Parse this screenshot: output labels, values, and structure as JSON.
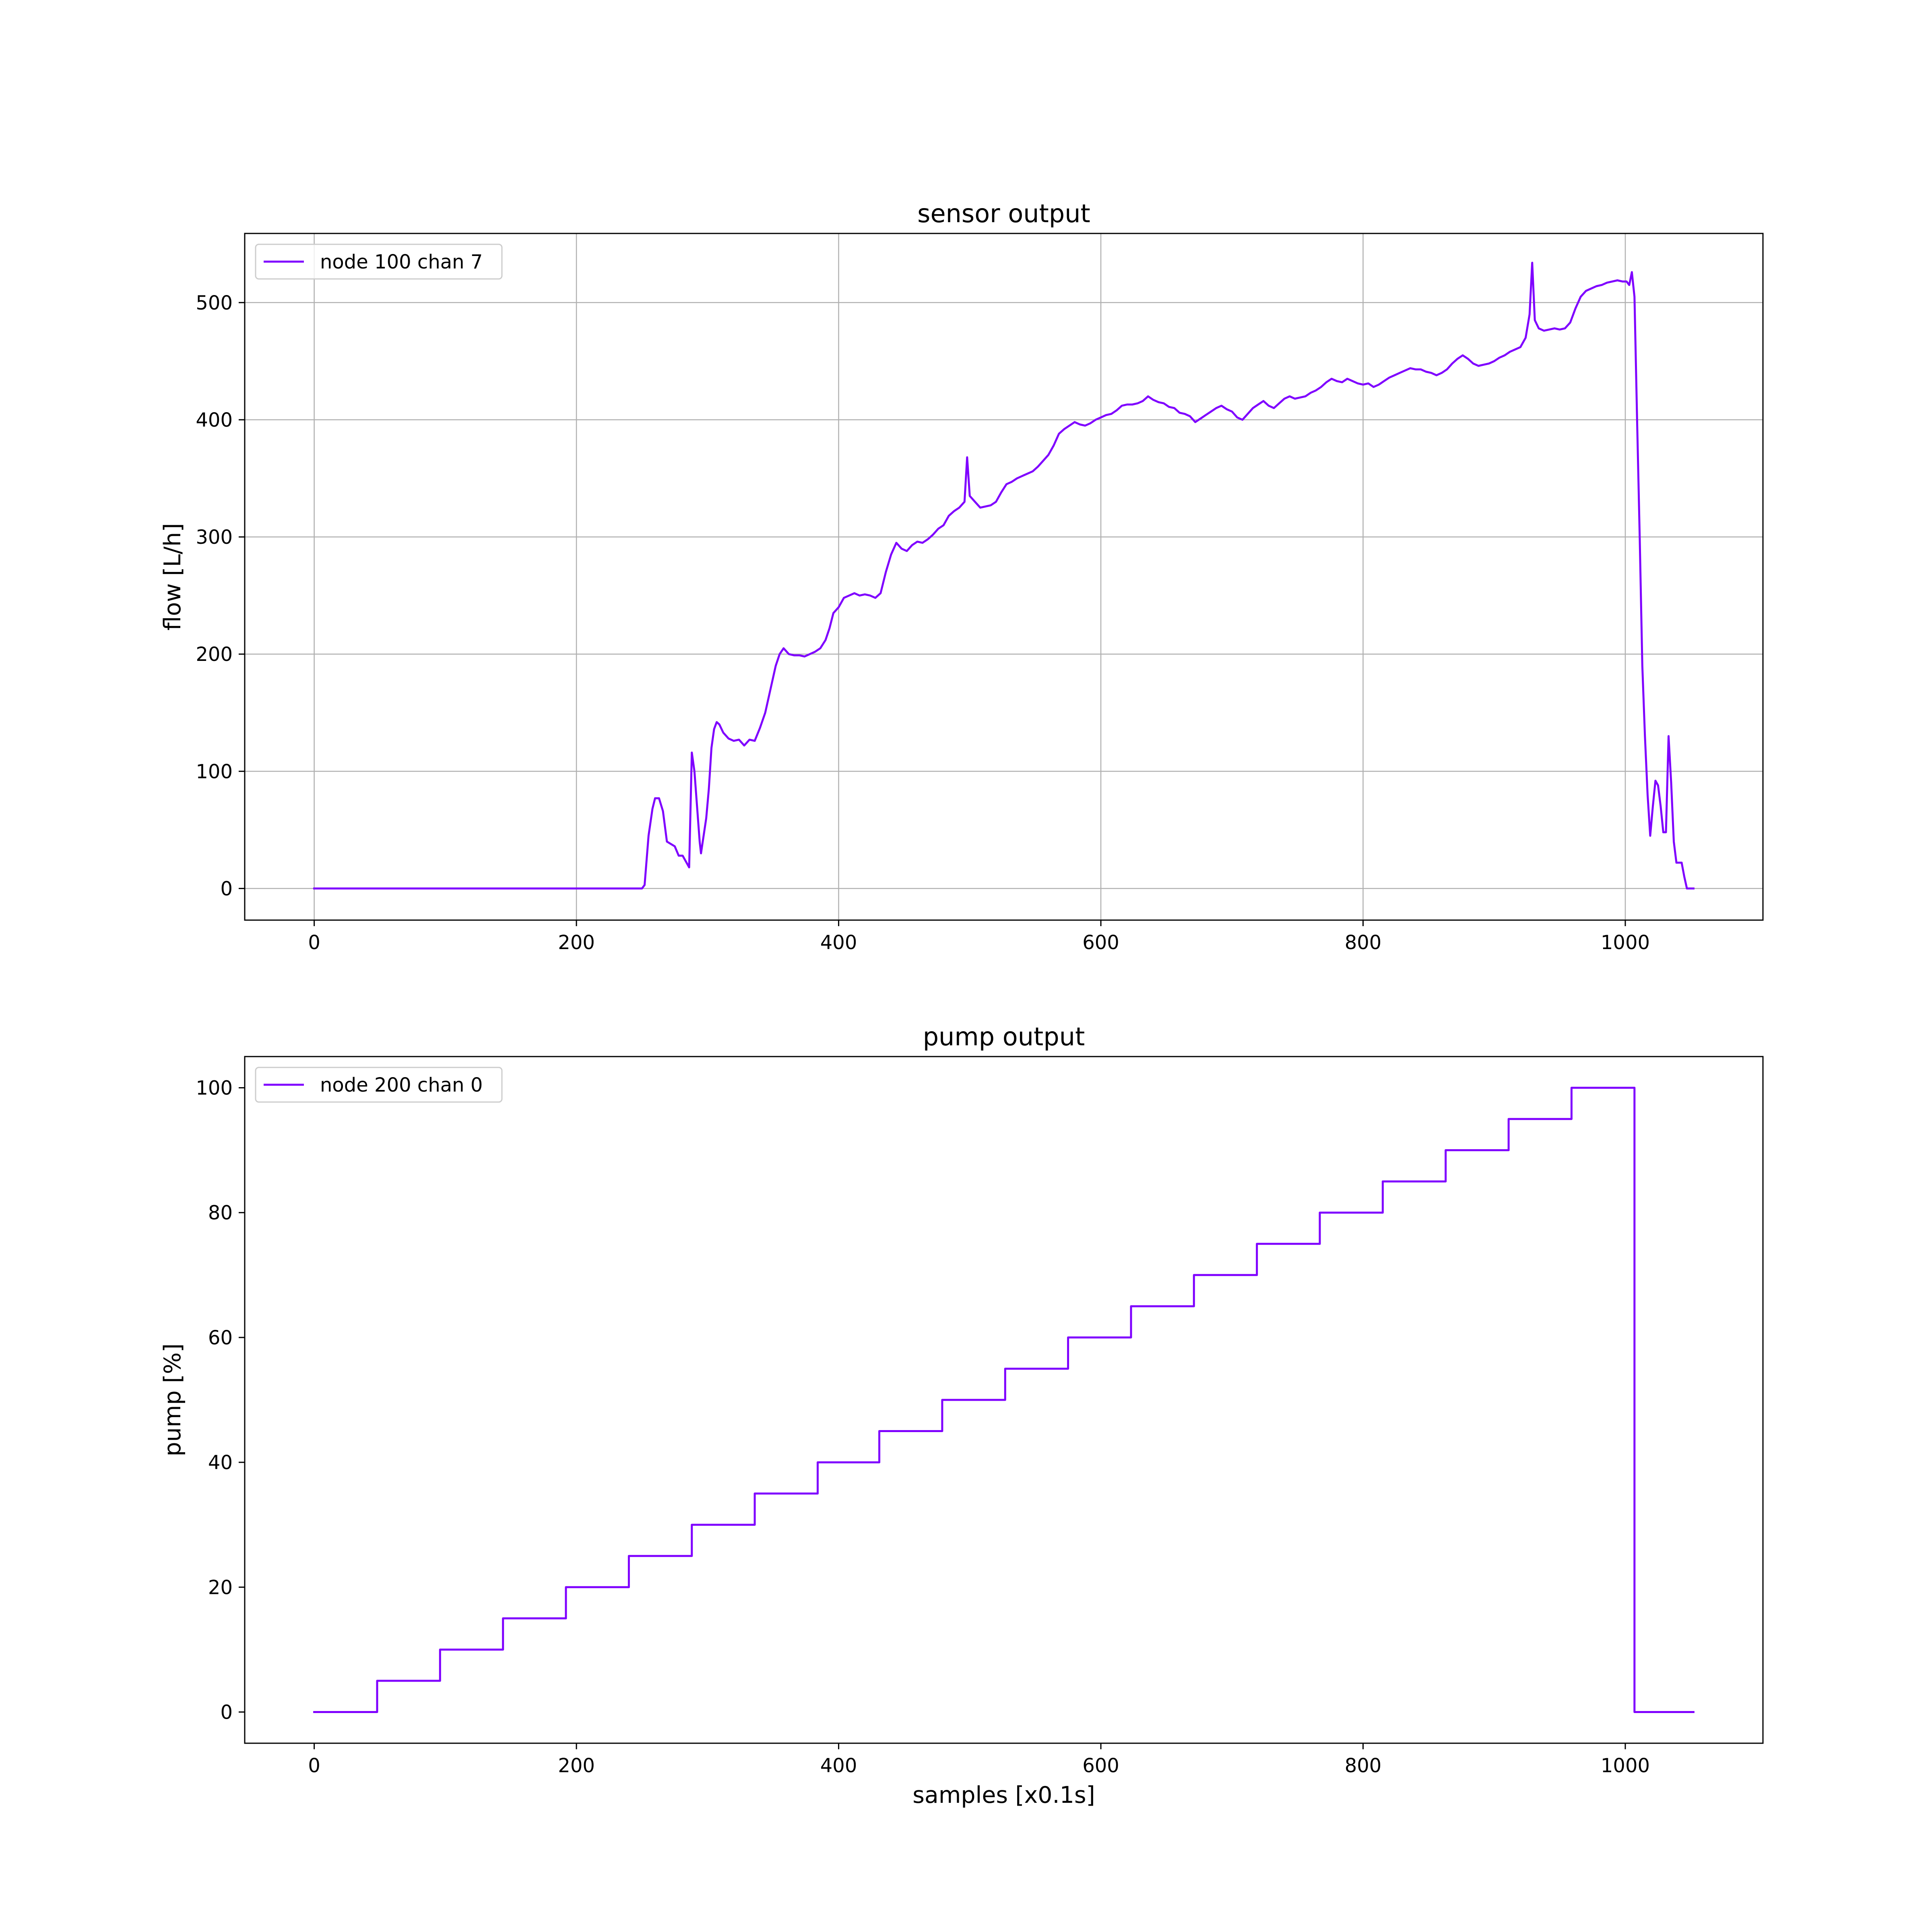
{
  "colors": {
    "series": "#7f00ff",
    "grid": "#b0b0b0",
    "axes": "#000000",
    "legend_border": "#cccccc"
  },
  "chart_data": [
    {
      "type": "line",
      "title": "sensor output",
      "xlabel": "",
      "ylabel": "flow [L/h]",
      "xlim": [
        -53,
        1105
      ],
      "ylim": [
        -27,
        559
      ],
      "xticks": [
        0,
        200,
        400,
        600,
        800,
        1000
      ],
      "xtick_labels": [
        "0",
        "200",
        "400",
        "600",
        "800",
        "1000"
      ],
      "yticks": [
        0,
        100,
        200,
        300,
        400,
        500
      ],
      "ytick_labels": [
        "0",
        "100",
        "200",
        "300",
        "400",
        "500"
      ],
      "grid": true,
      "legend": "top-left",
      "series": [
        {
          "name": "node 100 chan 7",
          "points": [
            [
              0,
              0
            ],
            [
              250,
              0
            ],
            [
              252,
              3
            ],
            [
              255,
              45
            ],
            [
              258,
              68
            ],
            [
              260,
              77
            ],
            [
              263,
              77
            ],
            [
              266,
              66
            ],
            [
              269,
              40
            ],
            [
              272,
              38
            ],
            [
              275,
              36
            ],
            [
              278,
              28
            ],
            [
              281,
              28
            ],
            [
              284,
              22
            ],
            [
              286,
              18
            ],
            [
              288,
              116
            ],
            [
              290,
              100
            ],
            [
              292,
              70
            ],
            [
              294,
              40
            ],
            [
              295,
              30
            ],
            [
              297,
              45
            ],
            [
              299,
              60
            ],
            [
              301,
              85
            ],
            [
              303,
              120
            ],
            [
              305,
              136
            ],
            [
              307,
              142
            ],
            [
              309,
              140
            ],
            [
              312,
              133
            ],
            [
              316,
              128
            ],
            [
              320,
              126
            ],
            [
              324,
              127
            ],
            [
              328,
              122
            ],
            [
              332,
              127
            ],
            [
              336,
              126
            ],
            [
              340,
              137
            ],
            [
              344,
              150
            ],
            [
              348,
              170
            ],
            [
              352,
              190
            ],
            [
              355,
              200
            ],
            [
              358,
              205
            ],
            [
              362,
              200
            ],
            [
              366,
              199
            ],
            [
              370,
              199
            ],
            [
              374,
              198
            ],
            [
              378,
              200
            ],
            [
              382,
              202
            ],
            [
              386,
              205
            ],
            [
              390,
              212
            ],
            [
              393,
              222
            ],
            [
              396,
              235
            ],
            [
              400,
              240
            ],
            [
              404,
              248
            ],
            [
              408,
              250
            ],
            [
              412,
              252
            ],
            [
              416,
              250
            ],
            [
              420,
              251
            ],
            [
              424,
              250
            ],
            [
              428,
              248
            ],
            [
              432,
              252
            ],
            [
              436,
              270
            ],
            [
              440,
              285
            ],
            [
              444,
              295
            ],
            [
              448,
              290
            ],
            [
              452,
              288
            ],
            [
              456,
              293
            ],
            [
              460,
              296
            ],
            [
              464,
              295
            ],
            [
              468,
              298
            ],
            [
              472,
              302
            ],
            [
              476,
              307
            ],
            [
              480,
              310
            ],
            [
              484,
              318
            ],
            [
              488,
              322
            ],
            [
              492,
              325
            ],
            [
              496,
              330
            ],
            [
              498,
              368
            ],
            [
              500,
              335
            ],
            [
              504,
              330
            ],
            [
              508,
              325
            ],
            [
              512,
              326
            ],
            [
              516,
              327
            ],
            [
              520,
              330
            ],
            [
              524,
              338
            ],
            [
              528,
              345
            ],
            [
              532,
              347
            ],
            [
              536,
              350
            ],
            [
              540,
              352
            ],
            [
              544,
              354
            ],
            [
              548,
              356
            ],
            [
              552,
              360
            ],
            [
              556,
              365
            ],
            [
              560,
              370
            ],
            [
              564,
              378
            ],
            [
              568,
              388
            ],
            [
              572,
              392
            ],
            [
              576,
              395
            ],
            [
              580,
              398
            ],
            [
              584,
              396
            ],
            [
              588,
              395
            ],
            [
              592,
              397
            ],
            [
              596,
              400
            ],
            [
              600,
              402
            ],
            [
              604,
              404
            ],
            [
              608,
              405
            ],
            [
              612,
              408
            ],
            [
              616,
              412
            ],
            [
              620,
              413
            ],
            [
              624,
              413
            ],
            [
              628,
              414
            ],
            [
              632,
              416
            ],
            [
              636,
              420
            ],
            [
              640,
              417
            ],
            [
              644,
              415
            ],
            [
              648,
              414
            ],
            [
              652,
              411
            ],
            [
              656,
              410
            ],
            [
              660,
              406
            ],
            [
              664,
              405
            ],
            [
              668,
              403
            ],
            [
              672,
              398
            ],
            [
              676,
              401
            ],
            [
              680,
              404
            ],
            [
              684,
              407
            ],
            [
              688,
              410
            ],
            [
              692,
              412
            ],
            [
              696,
              409
            ],
            [
              700,
              407
            ],
            [
              704,
              402
            ],
            [
              708,
              400
            ],
            [
              712,
              405
            ],
            [
              716,
              410
            ],
            [
              720,
              413
            ],
            [
              724,
              416
            ],
            [
              728,
              412
            ],
            [
              732,
              410
            ],
            [
              736,
              414
            ],
            [
              740,
              418
            ],
            [
              744,
              420
            ],
            [
              748,
              418
            ],
            [
              752,
              419
            ],
            [
              756,
              420
            ],
            [
              760,
              423
            ],
            [
              764,
              425
            ],
            [
              768,
              428
            ],
            [
              772,
              432
            ],
            [
              776,
              435
            ],
            [
              780,
              433
            ],
            [
              784,
              432
            ],
            [
              788,
              435
            ],
            [
              792,
              433
            ],
            [
              796,
              431
            ],
            [
              800,
              430
            ],
            [
              804,
              431
            ],
            [
              808,
              428
            ],
            [
              812,
              430
            ],
            [
              816,
              433
            ],
            [
              820,
              436
            ],
            [
              824,
              438
            ],
            [
              828,
              440
            ],
            [
              832,
              442
            ],
            [
              836,
              444
            ],
            [
              840,
              443
            ],
            [
              844,
              443
            ],
            [
              848,
              441
            ],
            [
              852,
              440
            ],
            [
              856,
              438
            ],
            [
              860,
              440
            ],
            [
              864,
              443
            ],
            [
              868,
              448
            ],
            [
              872,
              452
            ],
            [
              876,
              455
            ],
            [
              880,
              452
            ],
            [
              884,
              448
            ],
            [
              888,
              446
            ],
            [
              892,
              447
            ],
            [
              896,
              448
            ],
            [
              900,
              450
            ],
            [
              904,
              453
            ],
            [
              908,
              455
            ],
            [
              912,
              458
            ],
            [
              916,
              460
            ],
            [
              920,
              462
            ],
            [
              924,
              470
            ],
            [
              927,
              490
            ],
            [
              929,
              534
            ],
            [
              931,
              485
            ],
            [
              934,
              478
            ],
            [
              938,
              476
            ],
            [
              942,
              477
            ],
            [
              946,
              478
            ],
            [
              950,
              477
            ],
            [
              954,
              478
            ],
            [
              958,
              483
            ],
            [
              962,
              495
            ],
            [
              966,
              505
            ],
            [
              970,
              510
            ],
            [
              974,
              512
            ],
            [
              978,
              514
            ],
            [
              982,
              515
            ],
            [
              986,
              517
            ],
            [
              990,
              518
            ],
            [
              994,
              519
            ],
            [
              998,
              518
            ],
            [
              1001,
              518
            ],
            [
              1003,
              515
            ],
            [
              1005,
              526
            ],
            [
              1007,
              505
            ],
            [
              1009,
              400
            ],
            [
              1011,
              300
            ],
            [
              1013,
              190
            ],
            [
              1015,
              130
            ],
            [
              1017,
              80
            ],
            [
              1019,
              45
            ],
            [
              1021,
              70
            ],
            [
              1023,
              92
            ],
            [
              1025,
              88
            ],
            [
              1027,
              70
            ],
            [
              1029,
              48
            ],
            [
              1031,
              48
            ],
            [
              1033,
              130
            ],
            [
              1035,
              90
            ],
            [
              1037,
              40
            ],
            [
              1039,
              22
            ],
            [
              1041,
              22
            ],
            [
              1043,
              22
            ],
            [
              1045,
              10
            ],
            [
              1047,
              0
            ],
            [
              1052,
              0
            ]
          ]
        }
      ]
    },
    {
      "type": "line",
      "title": "pump output",
      "xlabel": "samples [x0.1s]",
      "ylabel": "pump [%]",
      "xlim": [
        -53,
        1105
      ],
      "ylim": [
        -5,
        105
      ],
      "xticks": [
        0,
        200,
        400,
        600,
        800,
        1000
      ],
      "xtick_labels": [
        "0",
        "200",
        "400",
        "600",
        "800",
        "1000"
      ],
      "yticks": [
        0,
        20,
        40,
        60,
        80,
        100
      ],
      "ytick_labels": [
        "0",
        "20",
        "40",
        "60",
        "80",
        "100"
      ],
      "grid": false,
      "legend": "top-left",
      "series": [
        {
          "name": "node 200 chan 0",
          "step": true,
          "points": [
            [
              0,
              0
            ],
            [
              48,
              5
            ],
            [
              96,
              10
            ],
            [
              144,
              15
            ],
            [
              192,
              20
            ],
            [
              240,
              25
            ],
            [
              288,
              30
            ],
            [
              336,
              35
            ],
            [
              384,
              40
            ],
            [
              431,
              45
            ],
            [
              479,
              50
            ],
            [
              527,
              55
            ],
            [
              575,
              60
            ],
            [
              623,
              65
            ],
            [
              671,
              70
            ],
            [
              719,
              75
            ],
            [
              767,
              80
            ],
            [
              815,
              85
            ],
            [
              863,
              90
            ],
            [
              911,
              95
            ],
            [
              959,
              100
            ],
            [
              1007,
              0
            ],
            [
              1052,
              0
            ]
          ]
        }
      ]
    }
  ]
}
